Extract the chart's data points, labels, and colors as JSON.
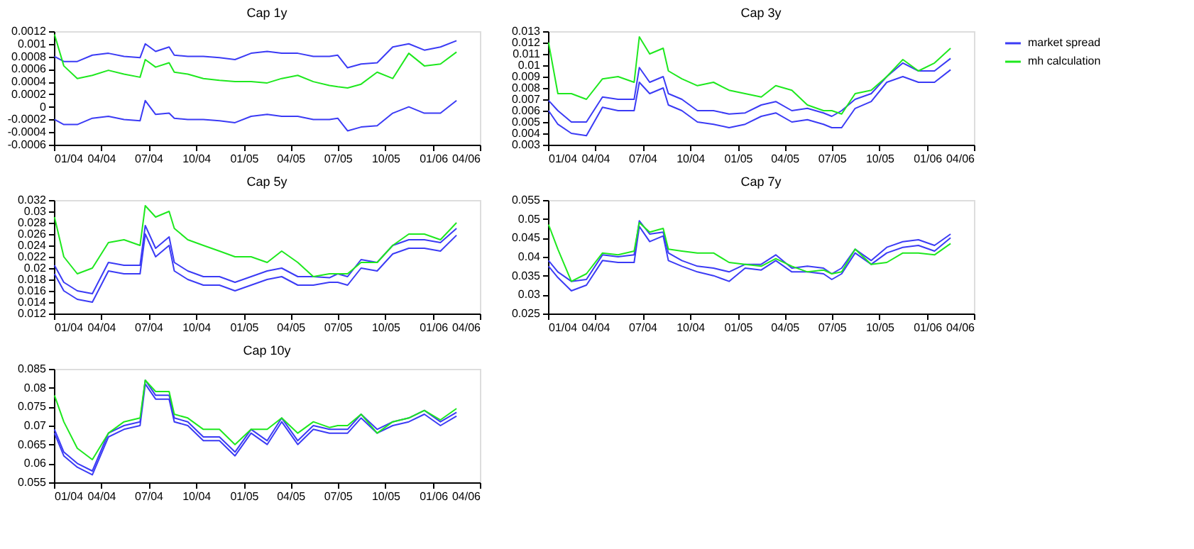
{
  "chart_data": [
    {
      "type": "line",
      "title": "Cap 1y",
      "legend": "top right",
      "marker": "none",
      "line_style": "solid",
      "x": [
        "2004-01-02",
        "2004-01-20",
        "2004-02-15",
        "2004-03-15",
        "2004-04-15",
        "2004-05-15",
        "2004-06-15",
        "2004-06-25",
        "2004-07-15",
        "2004-08-10",
        "2004-08-20",
        "2004-09-15",
        "2004-10-15",
        "2004-11-15",
        "2004-12-15",
        "2005-01-15",
        "2005-02-15",
        "2005-03-15",
        "2005-04-15",
        "2005-05-15",
        "2005-06-15",
        "2005-07-01",
        "2005-07-20",
        "2005-08-15",
        "2005-09-15",
        "2005-10-15",
        "2005-11-15",
        "2005-12-15",
        "2006-01-15",
        "2006-02-15"
      ],
      "series": [
        {
          "name": "market spread",
          "color": "#3b3bf5",
          "values": [
            0.0008,
            0.00072,
            0.00072,
            0.00082,
            0.00085,
            0.0008,
            0.00078,
            0.001,
            0.00088,
            0.00095,
            0.00082,
            0.0008,
            0.0008,
            0.00078,
            0.00075,
            0.00085,
            0.00088,
            0.00085,
            0.00085,
            0.0008,
            0.0008,
            0.00082,
            0.00062,
            0.00068,
            0.0007,
            0.00095,
            0.001,
            0.0009,
            0.00095,
            0.00105
          ]
        },
        {
          "color": "#3b3bf5",
          "values": [
            -0.0002,
            -0.00028,
            -0.00028,
            -0.00018,
            -0.00015,
            -0.0002,
            -0.00022,
            0.0001,
            -0.00012,
            -0.0001,
            -0.00018,
            -0.0002,
            -0.0002,
            -0.00022,
            -0.00025,
            -0.00015,
            -0.00012,
            -0.00015,
            -0.00015,
            -0.0002,
            -0.0002,
            -0.00018,
            -0.00038,
            -0.00032,
            -0.0003,
            -0.0001,
            0.0,
            -0.0001,
            -0.0001,
            0.0001
          ]
        },
        {
          "name": "mh calculation",
          "color": "#1ee81e",
          "values": [
            0.00115,
            0.00065,
            0.00045,
            0.0005,
            0.00058,
            0.00052,
            0.00047,
            0.00075,
            0.00063,
            0.0007,
            0.00055,
            0.00052,
            0.00045,
            0.00042,
            0.0004,
            0.0004,
            0.00038,
            0.00045,
            0.0005,
            0.0004,
            0.00034,
            0.00032,
            0.0003,
            0.00036,
            0.00055,
            0.00045,
            0.00085,
            0.00065,
            0.00068,
            0.00087
          ]
        }
      ],
      "xlim": [
        "2004-01-01",
        "2006-04-01"
      ],
      "xticks": [
        {
          "value": "2004-01-01",
          "label": "01/04"
        },
        {
          "value": "2004-04-01",
          "label": "04/04"
        },
        {
          "value": "2004-07-01",
          "label": "07/04"
        },
        {
          "value": "2004-10-01",
          "label": "10/04"
        },
        {
          "value": "2005-01-01",
          "label": "01/05"
        },
        {
          "value": "2005-04-01",
          "label": "04/05"
        },
        {
          "value": "2005-07-01",
          "label": "07/05"
        },
        {
          "value": "2005-10-01",
          "label": "10/05"
        },
        {
          "value": "2006-01-01",
          "label": "01/06"
        },
        {
          "value": "2006-04-01",
          "label": "04/06"
        }
      ],
      "ylim": [
        -0.0006,
        0.0012
      ],
      "yticks": [
        -0.0006,
        -0.0004,
        -0.0002,
        0,
        0.0002,
        0.0004,
        0.0006,
        0.0008,
        0.001,
        0.0012
      ]
    },
    {
      "type": "line",
      "title": "Cap 3y",
      "marker": "none",
      "line_style": "solid",
      "x": [
        "2004-01-02",
        "2004-01-20",
        "2004-02-15",
        "2004-03-15",
        "2004-04-15",
        "2004-05-15",
        "2004-06-15",
        "2004-06-25",
        "2004-07-15",
        "2004-08-10",
        "2004-08-20",
        "2004-09-15",
        "2004-10-15",
        "2004-11-15",
        "2004-12-15",
        "2005-01-15",
        "2005-02-15",
        "2005-03-15",
        "2005-04-15",
        "2005-05-15",
        "2005-06-15",
        "2005-07-01",
        "2005-07-20",
        "2005-08-15",
        "2005-09-15",
        "2005-10-15",
        "2005-11-15",
        "2005-12-15",
        "2006-01-15",
        "2006-02-15"
      ],
      "series": [
        {
          "color": "#3b3bf5",
          "values": [
            0.0069,
            0.006,
            0.005,
            0.005,
            0.0072,
            0.007,
            0.007,
            0.0098,
            0.0085,
            0.009,
            0.0075,
            0.007,
            0.006,
            0.006,
            0.0057,
            0.0058,
            0.0065,
            0.0068,
            0.006,
            0.0062,
            0.0058,
            0.0055,
            0.006,
            0.007,
            0.0075,
            0.009,
            0.0102,
            0.0095,
            0.0095,
            0.0106
          ]
        },
        {
          "color": "#3b3bf5",
          "values": [
            0.006,
            0.0048,
            0.004,
            0.0038,
            0.0063,
            0.006,
            0.006,
            0.0085,
            0.0075,
            0.008,
            0.0065,
            0.006,
            0.005,
            0.0048,
            0.0045,
            0.0048,
            0.0055,
            0.0058,
            0.005,
            0.0052,
            0.0048,
            0.0045,
            0.0045,
            0.0062,
            0.0068,
            0.0085,
            0.009,
            0.0085,
            0.0085,
            0.0096
          ]
        },
        {
          "color": "#1ee81e",
          "values": [
            0.012,
            0.0075,
            0.0075,
            0.007,
            0.0088,
            0.009,
            0.0085,
            0.0125,
            0.011,
            0.0115,
            0.0095,
            0.0088,
            0.0082,
            0.0085,
            0.0078,
            0.0075,
            0.0072,
            0.0082,
            0.0078,
            0.0065,
            0.006,
            0.006,
            0.0057,
            0.0075,
            0.0078,
            0.009,
            0.0105,
            0.0095,
            0.0102,
            0.0115
          ]
        }
      ],
      "xlim": [
        "2004-01-01",
        "2006-04-01"
      ],
      "xticks": [
        {
          "value": "2004-01-01",
          "label": "01/04"
        },
        {
          "value": "2004-04-01",
          "label": "04/04"
        },
        {
          "value": "2004-07-01",
          "label": "07/04"
        },
        {
          "value": "2004-10-01",
          "label": "10/04"
        },
        {
          "value": "2005-01-01",
          "label": "01/05"
        },
        {
          "value": "2005-04-01",
          "label": "04/05"
        },
        {
          "value": "2005-07-01",
          "label": "07/05"
        },
        {
          "value": "2005-10-01",
          "label": "10/05"
        },
        {
          "value": "2006-01-01",
          "label": "01/06"
        },
        {
          "value": "2006-04-01",
          "label": "04/06"
        }
      ],
      "ylim": [
        0.003,
        0.013
      ],
      "yticks": [
        0.003,
        0.004,
        0.005,
        0.006,
        0.007,
        0.008,
        0.009,
        0.01,
        0.011,
        0.012,
        0.013
      ]
    },
    {
      "type": "line",
      "title": "Cap 5y",
      "marker": "none",
      "line_style": "solid",
      "x": [
        "2004-01-02",
        "2004-01-20",
        "2004-02-15",
        "2004-03-15",
        "2004-04-15",
        "2004-05-15",
        "2004-06-15",
        "2004-06-25",
        "2004-07-15",
        "2004-08-10",
        "2004-08-20",
        "2004-09-15",
        "2004-10-15",
        "2004-11-15",
        "2004-12-15",
        "2005-01-15",
        "2005-02-15",
        "2005-03-15",
        "2005-04-15",
        "2005-05-15",
        "2005-06-15",
        "2005-07-01",
        "2005-07-20",
        "2005-08-15",
        "2005-09-15",
        "2005-10-15",
        "2005-11-15",
        "2005-12-15",
        "2006-01-15",
        "2006-02-15"
      ],
      "series": [
        {
          "color": "#3b3bf5",
          "values": [
            0.0205,
            0.0175,
            0.016,
            0.0155,
            0.021,
            0.0205,
            0.0205,
            0.0275,
            0.0235,
            0.0255,
            0.021,
            0.0195,
            0.0185,
            0.0185,
            0.0175,
            0.0185,
            0.0195,
            0.02,
            0.0185,
            0.0185,
            0.0183,
            0.019,
            0.0185,
            0.0215,
            0.021,
            0.024,
            0.025,
            0.025,
            0.0245,
            0.027
          ]
        },
        {
          "color": "#3b3bf5",
          "values": [
            0.019,
            0.016,
            0.0145,
            0.014,
            0.0195,
            0.019,
            0.019,
            0.026,
            0.022,
            0.024,
            0.0195,
            0.018,
            0.017,
            0.017,
            0.016,
            0.017,
            0.018,
            0.0185,
            0.017,
            0.017,
            0.0175,
            0.0175,
            0.017,
            0.02,
            0.0195,
            0.0225,
            0.0235,
            0.0235,
            0.023,
            0.0258
          ]
        },
        {
          "color": "#1ee81e",
          "values": [
            0.029,
            0.022,
            0.019,
            0.02,
            0.0245,
            0.025,
            0.024,
            0.031,
            0.029,
            0.03,
            0.027,
            0.025,
            0.024,
            0.023,
            0.022,
            0.022,
            0.021,
            0.023,
            0.021,
            0.0185,
            0.019,
            0.019,
            0.019,
            0.021,
            0.021,
            0.024,
            0.026,
            0.026,
            0.025,
            0.028
          ]
        }
      ],
      "xlim": [
        "2004-01-01",
        "2006-04-01"
      ],
      "xticks": [
        {
          "value": "2004-01-01",
          "label": "01/04"
        },
        {
          "value": "2004-04-01",
          "label": "04/04"
        },
        {
          "value": "2004-07-01",
          "label": "07/04"
        },
        {
          "value": "2004-10-01",
          "label": "10/04"
        },
        {
          "value": "2005-01-01",
          "label": "01/05"
        },
        {
          "value": "2005-04-01",
          "label": "04/05"
        },
        {
          "value": "2005-07-01",
          "label": "07/05"
        },
        {
          "value": "2005-10-01",
          "label": "10/05"
        },
        {
          "value": "2006-01-01",
          "label": "01/06"
        },
        {
          "value": "2006-04-01",
          "label": "04/06"
        }
      ],
      "ylim": [
        0.012,
        0.032
      ],
      "yticks": [
        0.012,
        0.014,
        0.016,
        0.018,
        0.02,
        0.022,
        0.024,
        0.026,
        0.028,
        0.03,
        0.032
      ]
    },
    {
      "type": "line",
      "title": "Cap 7y",
      "marker": "none",
      "line_style": "solid",
      "x": [
        "2004-01-02",
        "2004-01-20",
        "2004-02-15",
        "2004-03-15",
        "2004-04-15",
        "2004-05-15",
        "2004-06-15",
        "2004-06-25",
        "2004-07-15",
        "2004-08-10",
        "2004-08-20",
        "2004-09-15",
        "2004-10-15",
        "2004-11-15",
        "2004-12-15",
        "2005-01-15",
        "2005-02-15",
        "2005-03-15",
        "2005-04-15",
        "2005-05-15",
        "2005-06-15",
        "2005-07-01",
        "2005-07-20",
        "2005-08-15",
        "2005-09-15",
        "2005-10-15",
        "2005-11-15",
        "2005-12-15",
        "2006-01-15",
        "2006-02-15"
      ],
      "series": [
        {
          "color": "#3b3bf5",
          "values": [
            0.039,
            0.036,
            0.0335,
            0.034,
            0.0405,
            0.04,
            0.0405,
            0.0495,
            0.046,
            0.0465,
            0.041,
            0.039,
            0.0375,
            0.037,
            0.036,
            0.038,
            0.038,
            0.0405,
            0.037,
            0.0375,
            0.037,
            0.0355,
            0.037,
            0.042,
            0.039,
            0.0425,
            0.044,
            0.0445,
            0.043,
            0.046
          ]
        },
        {
          "color": "#3b3bf5",
          "values": [
            0.0375,
            0.0345,
            0.031,
            0.0325,
            0.039,
            0.0385,
            0.0385,
            0.048,
            0.044,
            0.0455,
            0.039,
            0.0375,
            0.036,
            0.035,
            0.0335,
            0.037,
            0.0365,
            0.039,
            0.036,
            0.036,
            0.0355,
            0.034,
            0.0355,
            0.041,
            0.038,
            0.041,
            0.0425,
            0.043,
            0.0415,
            0.045
          ]
        },
        {
          "color": "#1ee81e",
          "values": [
            0.0485,
            0.042,
            0.0335,
            0.0355,
            0.041,
            0.0405,
            0.0415,
            0.049,
            0.0465,
            0.0475,
            0.042,
            0.0415,
            0.041,
            0.041,
            0.0385,
            0.038,
            0.0375,
            0.0395,
            0.0375,
            0.036,
            0.0365,
            0.0355,
            0.036,
            0.042,
            0.038,
            0.0385,
            0.041,
            0.041,
            0.0405,
            0.0435
          ]
        }
      ],
      "xlim": [
        "2004-01-01",
        "2006-04-01"
      ],
      "xticks": [
        {
          "value": "2004-01-01",
          "label": "01/04"
        },
        {
          "value": "2004-04-01",
          "label": "04/04"
        },
        {
          "value": "2004-07-01",
          "label": "07/04"
        },
        {
          "value": "2004-10-01",
          "label": "10/04"
        },
        {
          "value": "2005-01-01",
          "label": "01/05"
        },
        {
          "value": "2005-04-01",
          "label": "04/05"
        },
        {
          "value": "2005-07-01",
          "label": "07/05"
        },
        {
          "value": "2005-10-01",
          "label": "10/05"
        },
        {
          "value": "2006-01-01",
          "label": "01/06"
        },
        {
          "value": "2006-04-01",
          "label": "04/06"
        }
      ],
      "ylim": [
        0.025,
        0.055
      ],
      "yticks": [
        0.025,
        0.03,
        0.035,
        0.04,
        0.045,
        0.05,
        0.055
      ]
    },
    {
      "type": "line",
      "title": "Cap 10y",
      "marker": "none",
      "line_style": "solid",
      "x": [
        "2004-01-02",
        "2004-01-20",
        "2004-02-15",
        "2004-03-15",
        "2004-04-15",
        "2004-05-15",
        "2004-06-15",
        "2004-06-25",
        "2004-07-15",
        "2004-08-10",
        "2004-08-20",
        "2004-09-15",
        "2004-10-15",
        "2004-11-15",
        "2004-12-15",
        "2005-01-15",
        "2005-02-15",
        "2005-03-15",
        "2005-04-15",
        "2005-05-15",
        "2005-06-15",
        "2005-07-01",
        "2005-07-20",
        "2005-08-15",
        "2005-09-15",
        "2005-10-15",
        "2005-11-15",
        "2005-12-15",
        "2006-01-15",
        "2006-02-15"
      ],
      "series": [
        {
          "color": "#3b3bf5",
          "values": [
            0.069,
            0.063,
            0.06,
            0.058,
            0.068,
            0.07,
            0.071,
            0.082,
            0.078,
            0.078,
            0.072,
            0.071,
            0.067,
            0.067,
            0.063,
            0.069,
            0.066,
            0.072,
            0.066,
            0.07,
            0.069,
            0.069,
            0.069,
            0.073,
            0.069,
            0.071,
            0.072,
            0.074,
            0.071,
            0.0735
          ]
        },
        {
          "color": "#3b3bf5",
          "values": [
            0.068,
            0.062,
            0.059,
            0.057,
            0.067,
            0.069,
            0.07,
            0.081,
            0.077,
            0.077,
            0.071,
            0.07,
            0.066,
            0.066,
            0.062,
            0.068,
            0.065,
            0.071,
            0.065,
            0.069,
            0.068,
            0.068,
            0.068,
            0.072,
            0.068,
            0.07,
            0.071,
            0.073,
            0.07,
            0.0725
          ]
        },
        {
          "color": "#1ee81e",
          "values": [
            0.078,
            0.071,
            0.064,
            0.061,
            0.068,
            0.071,
            0.072,
            0.082,
            0.079,
            0.079,
            0.073,
            0.072,
            0.069,
            0.069,
            0.065,
            0.069,
            0.069,
            0.072,
            0.068,
            0.071,
            0.0695,
            0.07,
            0.07,
            0.073,
            0.068,
            0.071,
            0.072,
            0.074,
            0.0715,
            0.0745
          ]
        }
      ],
      "xlim": [
        "2004-01-01",
        "2006-04-01"
      ],
      "xticks": [
        {
          "value": "2004-01-01",
          "label": "01/04"
        },
        {
          "value": "2004-04-01",
          "label": "04/04"
        },
        {
          "value": "2004-07-01",
          "label": "07/04"
        },
        {
          "value": "2004-10-01",
          "label": "10/04"
        },
        {
          "value": "2005-01-01",
          "label": "01/05"
        },
        {
          "value": "2005-04-01",
          "label": "04/05"
        },
        {
          "value": "2005-07-01",
          "label": "07/05"
        },
        {
          "value": "2005-10-01",
          "label": "10/05"
        },
        {
          "value": "2006-01-01",
          "label": "01/06"
        },
        {
          "value": "2006-04-01",
          "label": "04/06"
        }
      ],
      "ylim": [
        0.055,
        0.085
      ],
      "yticks": [
        0.055,
        0.06,
        0.065,
        0.07,
        0.075,
        0.08,
        0.085
      ]
    }
  ]
}
